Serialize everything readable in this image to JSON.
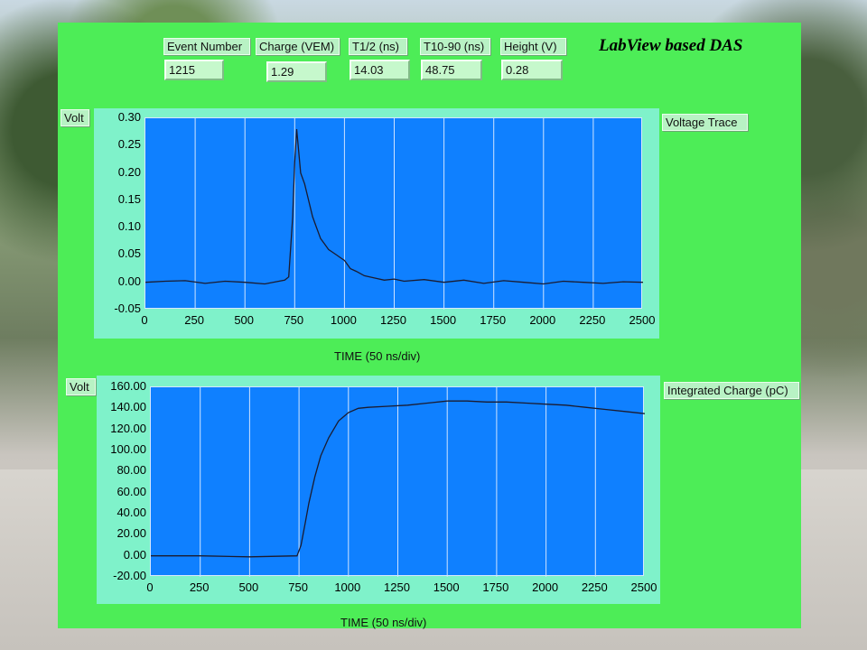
{
  "das_title": "LabView based DAS",
  "indicators": [
    {
      "label": "Event Number",
      "value": "1215"
    },
    {
      "label": "Charge (VEM)",
      "value": "1.29"
    },
    {
      "label": "T1/2 (ns)",
      "value": "14.03"
    },
    {
      "label": "T10-90 (ns)",
      "value": "48.75"
    },
    {
      "label": "Height (V)",
      "value": "0.28"
    }
  ],
  "colors": {
    "panel": "#4ded57",
    "frame": "#7ff2ca",
    "plot_bg": "#0f80ff",
    "trace": "#1b1b2f"
  },
  "chart_data": [
    {
      "type": "line",
      "title": "Voltage Trace",
      "ylabel": "Volt",
      "xlabel": "TIME (50 ns/div)",
      "xlim": [
        0,
        2500
      ],
      "ylim": [
        -0.05,
        0.3
      ],
      "x_ticks": [
        "0",
        "250",
        "500",
        "750",
        "1000",
        "1250",
        "1500",
        "1750",
        "2000",
        "2250",
        "2500"
      ],
      "y_ticks": [
        "0.30",
        "0.25",
        "0.20",
        "0.15",
        "0.10",
        "0.05",
        "0.00",
        "-0.05"
      ],
      "grid": "vertical",
      "series": [
        {
          "x": [
            0,
            100,
            200,
            300,
            400,
            500,
            600,
            700,
            720,
            740,
            750,
            760,
            770,
            780,
            800,
            820,
            840,
            860,
            880,
            900,
            920,
            940,
            960,
            980,
            1000,
            1030,
            1060,
            1100,
            1150,
            1200,
            1250,
            1300,
            1400,
            1500,
            1600,
            1700,
            1800,
            1900,
            2000,
            2100,
            2200,
            2300,
            2400,
            2500
          ],
          "y": [
            0.0,
            0.002,
            0.003,
            -0.002,
            0.002,
            0.0,
            -0.003,
            0.004,
            0.01,
            0.12,
            0.22,
            0.28,
            0.24,
            0.2,
            0.18,
            0.15,
            0.12,
            0.1,
            0.08,
            0.07,
            0.06,
            0.055,
            0.05,
            0.045,
            0.04,
            0.025,
            0.02,
            0.012,
            0.008,
            0.004,
            0.006,
            0.002,
            0.005,
            0.0,
            0.004,
            -0.002,
            0.003,
            0.0,
            -0.003,
            0.002,
            0.0,
            -0.002,
            0.001,
            0.0
          ]
        }
      ]
    },
    {
      "type": "line",
      "title": "Integrated Charge (pC)",
      "ylabel": "Volt",
      "xlabel": "TIME (50 ns/div)",
      "xlim": [
        0,
        2500
      ],
      "ylim": [
        -20,
        160
      ],
      "x_ticks": [
        "0",
        "250",
        "500",
        "750",
        "1000",
        "1250",
        "1500",
        "1750",
        "2000",
        "2250",
        "2500"
      ],
      "y_ticks": [
        "160.00",
        "140.00",
        "120.00",
        "100.00",
        "80.00",
        "60.00",
        "40.00",
        "20.00",
        "0.00",
        "-20.00"
      ],
      "grid": "vertical",
      "series": [
        {
          "x": [
            0,
            250,
            500,
            740,
            760,
            780,
            800,
            830,
            860,
            900,
            950,
            1000,
            1050,
            1100,
            1200,
            1300,
            1400,
            1500,
            1600,
            1700,
            1800,
            1900,
            2000,
            2100,
            2200,
            2300,
            2400,
            2500
          ],
          "y": [
            0,
            0,
            -1,
            0,
            10,
            30,
            50,
            75,
            95,
            112,
            128,
            136,
            140,
            141,
            142,
            143,
            145,
            147,
            147,
            146,
            146,
            145,
            144,
            143,
            141,
            139,
            137,
            135
          ]
        }
      ]
    }
  ]
}
